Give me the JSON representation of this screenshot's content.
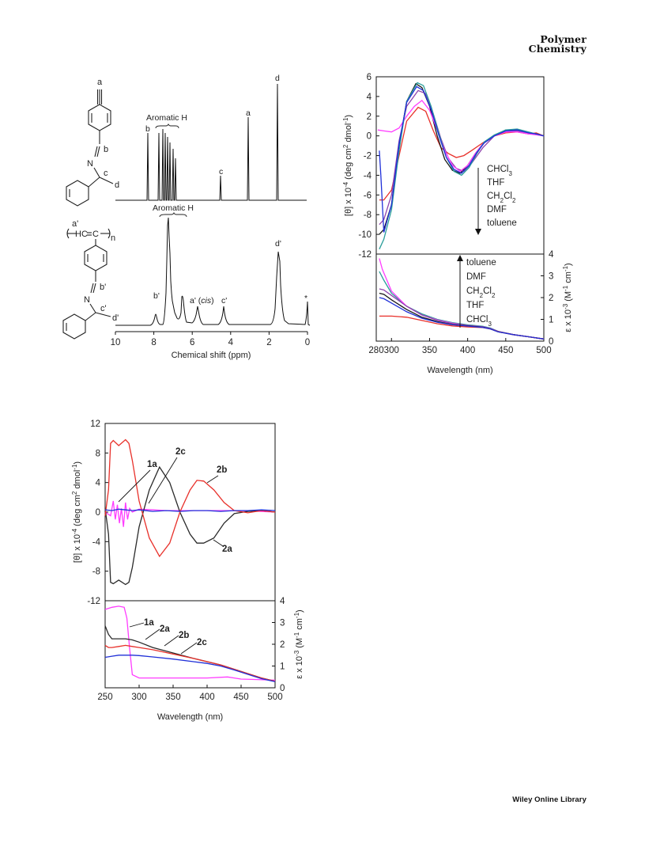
{
  "header": {
    "journal_line1": "Polymer",
    "journal_line2": "Chemistry"
  },
  "footer": {
    "publisher": "Wiley Online Library"
  },
  "nmr": {
    "monomer_peak_labels": {
      "a": "a",
      "b": "b",
      "c": "c",
      "d": "d"
    },
    "monomer_structure_labels": {
      "a": "a",
      "b": "b",
      "c": "c",
      "d": "d",
      "n": "N"
    },
    "aromatic_label_top": "Aromatic H",
    "aromatic_label_bottom": "Aromatic H",
    "polymer_peak_labels": {
      "b": "b'",
      "a": "a' (",
      "a_cis": "cis",
      "a_close": ")",
      "c": "c'",
      "d": "d'",
      "star": "*"
    },
    "polymer_structure_labels": {
      "a": "a'",
      "hc": "HC",
      "eq": "=",
      "cc": "C",
      "n": "n",
      "nn": "N",
      "b": "b'",
      "c": "c'",
      "d": "d'"
    },
    "x_ticks": [
      "10",
      "8",
      "6",
      "4",
      "2",
      "0"
    ],
    "xlabel": "Chemical shift (ppm)"
  },
  "chart_data": [
    {
      "type": "line",
      "title": "",
      "panel": "solvent CD / UV",
      "xlabel": "Wavelength (nm)",
      "ylabel_top": "[θ] x 10-4 (deg cm2 dmol-1)",
      "ylabel_bottom": "ε x 10-3 (M-1 cm-1)",
      "xlim": [
        280,
        500
      ],
      "ylim_top": [
        -12,
        6
      ],
      "ylim_bottom": [
        0,
        4
      ],
      "x_ticks": [
        "280",
        "300",
        "350",
        "400",
        "450",
        "500"
      ],
      "y_ticks_top": [
        "6",
        "4",
        "2",
        "0",
        "-2",
        "-4",
        "-6",
        "-8",
        "-10",
        "-12"
      ],
      "y_ticks_bottom": [
        "4",
        "3",
        "2",
        "1",
        "0"
      ],
      "cd_legend": [
        "CHCl3",
        "THF",
        "CH2Cl2",
        "DMF",
        "toluene"
      ],
      "uv_legend": [
        "toluene",
        "DMF",
        "CH2Cl2",
        "THF",
        "CHCl3"
      ],
      "series_cd": [
        {
          "name": "CHCl3",
          "color": "#e8302a",
          "x": [
            284,
            290,
            300,
            310,
            320,
            335,
            345,
            355,
            365,
            375,
            385,
            395,
            405,
            420,
            435,
            450,
            465,
            480,
            490,
            500
          ],
          "y": [
            -6.5,
            -6.5,
            -5.5,
            -2,
            1.5,
            2.9,
            2.5,
            0.5,
            -1.2,
            -1.8,
            -2.2,
            -2,
            -1.5,
            -0.7,
            0,
            0.3,
            0.4,
            0.2,
            0.3,
            0
          ]
        },
        {
          "name": "THF",
          "color": "#1a1a1a",
          "x": [
            284,
            290,
            300,
            310,
            320,
            332,
            340,
            350,
            360,
            370,
            380,
            390,
            400,
            410,
            420,
            435,
            450,
            465,
            480,
            490,
            500
          ],
          "y": [
            -10,
            -9.5,
            -7,
            -1,
            3.5,
            5.3,
            4.9,
            3,
            0,
            -2.4,
            -3.5,
            -3.8,
            -3,
            -1.8,
            -0.8,
            0,
            0.6,
            0.6,
            0.3,
            0.2,
            0
          ]
        },
        {
          "name": "CH2Cl2",
          "color": "#8e44ad",
          "x": [
            284,
            290,
            300,
            310,
            320,
            335,
            345,
            355,
            365,
            375,
            385,
            395,
            405,
            420,
            435,
            450,
            465,
            480,
            490,
            500
          ],
          "y": [
            -9,
            -8.5,
            -6,
            -0.5,
            3,
            4.6,
            4.3,
            2.2,
            -0.3,
            -2.3,
            -3.3,
            -3.6,
            -2.8,
            -1.2,
            0,
            0.5,
            0.5,
            0.3,
            0.2,
            0
          ]
        },
        {
          "name": "DMF",
          "color": "#ff3cff",
          "x": [
            282,
            290,
            300,
            310,
            320,
            330,
            340,
            350,
            360,
            370,
            380,
            390,
            400,
            410,
            420,
            435,
            450,
            465,
            480,
            490,
            500
          ],
          "y": [
            0.6,
            0.5,
            0.4,
            0.8,
            2,
            3,
            3.6,
            2.6,
            0.6,
            -1.5,
            -3,
            -3.6,
            -3,
            -1.8,
            -0.8,
            0,
            0.4,
            0.4,
            0.2,
            0.1,
            0
          ]
        },
        {
          "name": "toluene",
          "color": "#2a9d9a",
          "x": [
            284,
            290,
            300,
            310,
            320,
            334,
            342,
            352,
            362,
            372,
            382,
            392,
            402,
            412,
            422,
            435,
            450,
            465,
            480,
            490,
            500
          ],
          "y": [
            -11.5,
            -10.5,
            -7.5,
            -1.5,
            3.5,
            5.4,
            5.1,
            3,
            0.3,
            -2.2,
            -3.6,
            -4,
            -3.2,
            -1.8,
            -0.6,
            0.1,
            0.6,
            0.7,
            0.4,
            0.2,
            0
          ]
        },
        {
          "name": "",
          "color": "#2030d8",
          "x": [
            284,
            286,
            290,
            300,
            310,
            320,
            333,
            342,
            352,
            362,
            372,
            382,
            392,
            402,
            412,
            422,
            435,
            450,
            465,
            480,
            490,
            500
          ],
          "y": [
            -1.5,
            -4,
            -9.8,
            -7,
            -0.8,
            3.4,
            5,
            4.6,
            2.7,
            0.1,
            -2.2,
            -3.4,
            -3.8,
            -3,
            -1.7,
            -0.7,
            0,
            0.5,
            0.6,
            0.3,
            0.2,
            0
          ]
        }
      ],
      "series_uv": [
        {
          "name": "toluene",
          "color": "#2a9d9a",
          "x": [
            284,
            290,
            300,
            320,
            340,
            360,
            380,
            400,
            420,
            430,
            440,
            460,
            480,
            500
          ],
          "y": [
            3.2,
            2.8,
            2.2,
            1.6,
            1.25,
            1,
            0.85,
            0.75,
            0.68,
            0.6,
            0.45,
            0.3,
            0.2,
            0.1
          ]
        },
        {
          "name": "DMF",
          "color": "#ff3cff",
          "x": [
            284,
            288,
            300,
            320,
            340,
            360,
            380,
            400,
            420,
            430,
            440,
            460,
            480,
            500
          ],
          "y": [
            3.8,
            3.3,
            2.3,
            1.6,
            1.2,
            0.98,
            0.82,
            0.72,
            0.66,
            0.58,
            0.44,
            0.3,
            0.2,
            0.1
          ]
        },
        {
          "name": "CH2Cl2",
          "color": "#8e44ad",
          "x": [
            284,
            290,
            300,
            320,
            340,
            360,
            380,
            400,
            420,
            430,
            440,
            460,
            480,
            500
          ],
          "y": [
            2.4,
            2.35,
            2.1,
            1.6,
            1.2,
            0.96,
            0.8,
            0.72,
            0.65,
            0.58,
            0.44,
            0.3,
            0.2,
            0.1
          ]
        },
        {
          "name": "THF",
          "color": "#1a1a1a",
          "x": [
            284,
            290,
            300,
            320,
            340,
            360,
            380,
            400,
            420,
            430,
            440,
            460,
            480,
            500
          ],
          "y": [
            2.2,
            2.15,
            1.9,
            1.45,
            1.1,
            0.9,
            0.76,
            0.7,
            0.64,
            0.56,
            0.43,
            0.3,
            0.2,
            0.1
          ]
        },
        {
          "name": "CHCl3",
          "color": "#e8302a",
          "x": [
            284,
            290,
            300,
            320,
            340,
            360,
            380,
            400,
            420,
            430,
            440,
            460,
            480,
            500
          ],
          "y": [
            1.15,
            1.15,
            1.15,
            1.1,
            0.95,
            0.8,
            0.7,
            0.65,
            0.62,
            0.56,
            0.44,
            0.3,
            0.2,
            0.1
          ]
        },
        {
          "name": "",
          "color": "#2030d8",
          "x": [
            284,
            290,
            300,
            320,
            340,
            360,
            380,
            400,
            420,
            430,
            440,
            460,
            480,
            500
          ],
          "y": [
            2,
            1.95,
            1.75,
            1.35,
            1.05,
            0.87,
            0.75,
            0.69,
            0.63,
            0.56,
            0.43,
            0.3,
            0.2,
            0.1
          ]
        }
      ]
    },
    {
      "type": "line",
      "title": "",
      "panel": "polymer CD / UV",
      "xlabel": "Wavelength (nm)",
      "ylabel_top": "[θ] x 10-4 (deg cm2 dmol-1)",
      "ylabel_bottom": "ε x 10-3 (M-1 cm-1)",
      "xlim": [
        250,
        500
      ],
      "ylim_top": [
        -12,
        12
      ],
      "ylim_bottom": [
        0,
        4
      ],
      "x_ticks": [
        "250",
        "300",
        "350",
        "400",
        "450",
        "500"
      ],
      "y_ticks_top": [
        "12",
        "8",
        "4",
        "0",
        "-4",
        "-8",
        "-12"
      ],
      "y_ticks_bottom": [
        "4",
        "3",
        "2",
        "1",
        "0"
      ],
      "annotations_top": [
        "1a",
        "2c",
        "2b",
        "2a"
      ],
      "annotations_bottom": [
        "1a",
        "2a",
        "2b",
        "2c"
      ],
      "series_cd": [
        {
          "name": "1a",
          "color": "#ff3cff",
          "x": [
            250,
            258,
            262,
            265,
            268,
            271,
            274,
            277,
            280,
            283,
            286,
            290,
            300,
            320,
            340,
            360,
            400,
            450,
            500
          ],
          "y": [
            0,
            -0.5,
            1.5,
            -1,
            1,
            -1.5,
            0.5,
            -2,
            1.3,
            -1,
            0.5,
            0,
            0.4,
            0.3,
            0.2,
            0.2,
            0.2,
            0.2,
            0
          ]
        },
        {
          "name": "2a",
          "color": "#2a2a2a",
          "x": [
            250,
            255,
            258,
            262,
            270,
            280,
            285,
            290,
            300,
            315,
            330,
            345,
            360,
            375,
            385,
            395,
            410,
            425,
            440,
            460,
            480,
            500
          ],
          "y": [
            0.5,
            -3,
            -9.5,
            -9.7,
            -9.2,
            -9.8,
            -9.5,
            -7.5,
            -2,
            3,
            6.1,
            4,
            0,
            -3,
            -4.2,
            -4.2,
            -3.5,
            -1.5,
            -0.2,
            0.1,
            0.2,
            0
          ]
        },
        {
          "name": "2b",
          "color": "#e8302a",
          "x": [
            250,
            255,
            258,
            262,
            270,
            280,
            285,
            290,
            300,
            315,
            330,
            345,
            360,
            375,
            385,
            395,
            410,
            425,
            440,
            460,
            480,
            500
          ],
          "y": [
            -0.5,
            3,
            9.3,
            9.7,
            9,
            9.8,
            9.3,
            7,
            1.5,
            -3.5,
            -6,
            -4.2,
            0,
            3,
            4.3,
            4.2,
            3,
            1.3,
            0.2,
            -0.1,
            0.2,
            0
          ]
        },
        {
          "name": "2c",
          "color": "#2030d8",
          "x": [
            250,
            260,
            270,
            280,
            290,
            300,
            320,
            340,
            360,
            380,
            400,
            420,
            440,
            460,
            480,
            500
          ],
          "y": [
            0.3,
            0.2,
            0.4,
            0.3,
            0.2,
            0.3,
            0.1,
            0.2,
            0.1,
            0.2,
            0.2,
            0.1,
            0.2,
            0.2,
            0.3,
            0.2
          ]
        }
      ],
      "series_uv": [
        {
          "name": "1a",
          "color": "#ff3cff",
          "x": [
            250,
            260,
            270,
            278,
            282,
            286,
            290,
            300,
            320,
            350,
            400,
            430,
            440,
            450,
            470,
            500
          ],
          "y": [
            3.6,
            3.7,
            3.75,
            3.7,
            3.2,
            1.8,
            0.6,
            0.45,
            0.45,
            0.45,
            0.45,
            0.5,
            0.45,
            0.4,
            0.38,
            0.35
          ]
        },
        {
          "name": "2a",
          "color": "#2a2a2a",
          "x": [
            250,
            255,
            260,
            270,
            280,
            290,
            300,
            320,
            350,
            380,
            400,
            420,
            440,
            460,
            480,
            500
          ],
          "y": [
            2.85,
            2.45,
            2.25,
            2.25,
            2.25,
            2.2,
            2.1,
            1.85,
            1.6,
            1.35,
            1.2,
            1.05,
            0.85,
            0.65,
            0.45,
            0.3
          ]
        },
        {
          "name": "2b",
          "color": "#e8302a",
          "x": [
            250,
            255,
            260,
            270,
            280,
            290,
            300,
            320,
            350,
            380,
            400,
            420,
            440,
            460,
            480,
            500
          ],
          "y": [
            1.95,
            1.85,
            1.85,
            1.9,
            1.95,
            1.9,
            1.85,
            1.75,
            1.55,
            1.35,
            1.2,
            1.05,
            0.85,
            0.65,
            0.45,
            0.3
          ]
        },
        {
          "name": "2c",
          "color": "#2030d8",
          "x": [
            250,
            260,
            270,
            280,
            290,
            300,
            320,
            350,
            380,
            400,
            420,
            440,
            460,
            480,
            500
          ],
          "y": [
            1.4,
            1.45,
            1.5,
            1.5,
            1.5,
            1.48,
            1.42,
            1.32,
            1.2,
            1.12,
            1.0,
            0.82,
            0.62,
            0.42,
            0.28
          ]
        }
      ]
    }
  ]
}
